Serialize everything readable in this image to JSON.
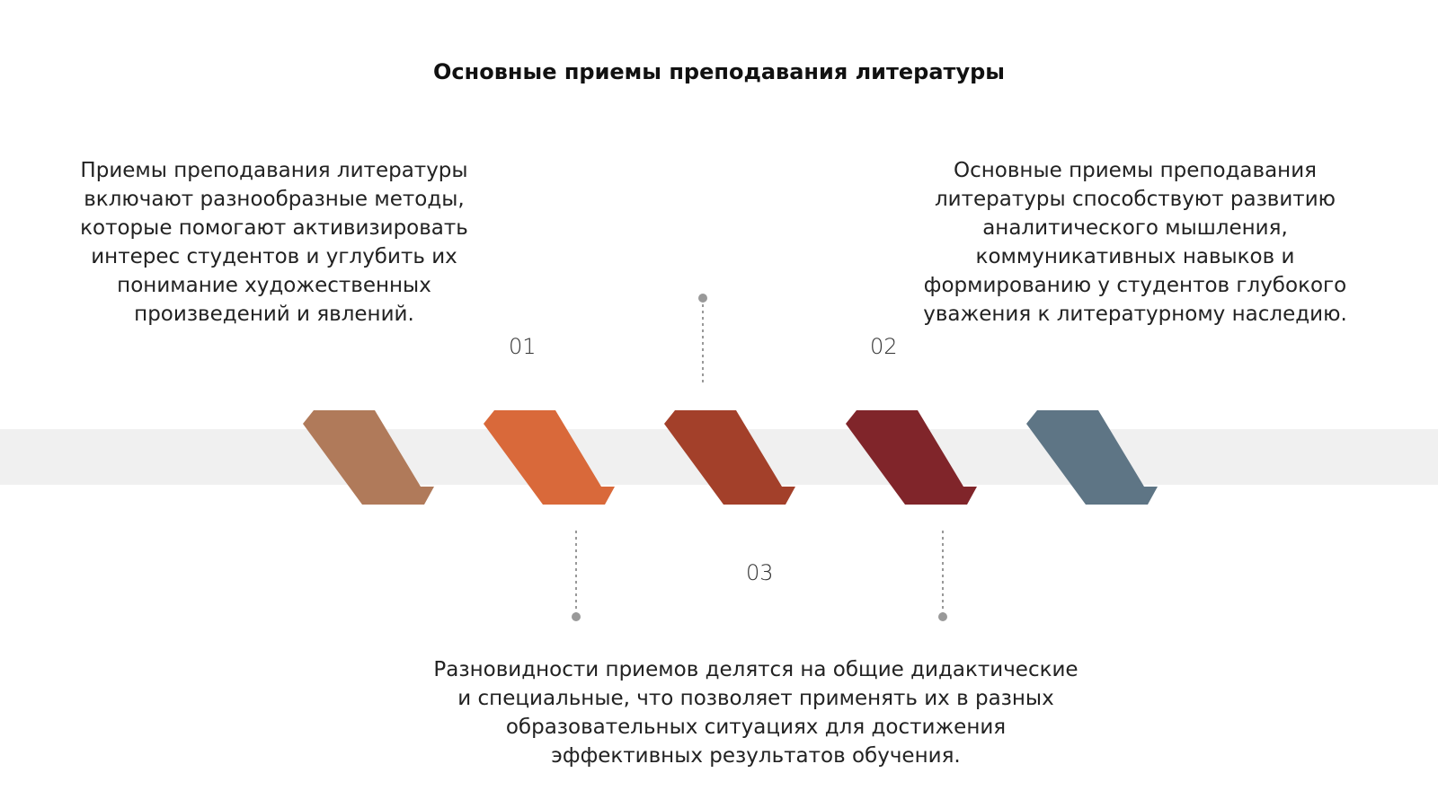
{
  "header": {
    "title": "Основные приемы преподавания литературы"
  },
  "steps": [
    {
      "number": "01",
      "text": "Приемы преподавания литературы включают разнообразные методы, которые помогают активизировать интерес студентов и углубить их понимание художественных произведений и явлений."
    },
    {
      "number": "02",
      "text": "Основные приемы преподавания литературы способствуют развитию аналитического мышления, коммуникативных навыков и формированию у студентов глубокого уважения к литературному наследию."
    },
    {
      "number": "03",
      "text": "Разновидности приемов делятся на общие дидактические и специальные, что позволяет применять их в разных образовательных ситуациях для достижения эффективных результатов обучения."
    }
  ]
}
